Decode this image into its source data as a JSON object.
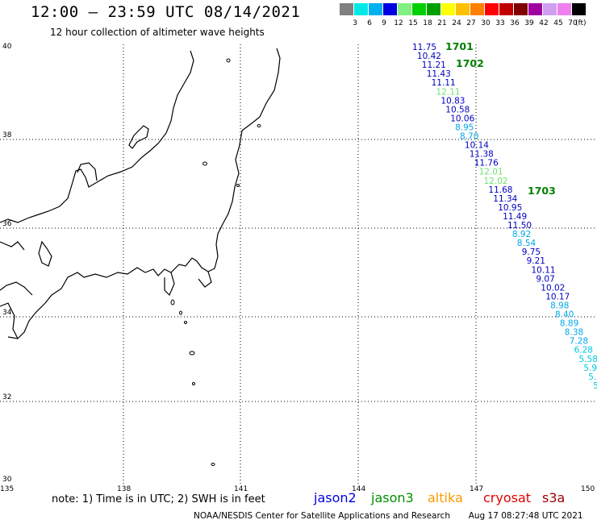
{
  "header": {
    "title": "12:00 – 23:59 UTC 08/14/2021",
    "subtitle": "12 hour collection of altimeter wave heights"
  },
  "color_scale": {
    "unit": "(ft)",
    "items": [
      {
        "label": "3",
        "color": "#808080"
      },
      {
        "label": "6",
        "color": "#00e8e8"
      },
      {
        "label": "9",
        "color": "#00b0f0"
      },
      {
        "label": "12",
        "color": "#0000e0"
      },
      {
        "label": "15",
        "color": "#80f080"
      },
      {
        "label": "18",
        "color": "#00d000"
      },
      {
        "label": "21",
        "color": "#00a000"
      },
      {
        "label": "24",
        "color": "#ffff00"
      },
      {
        "label": "27",
        "color": "#ffc000"
      },
      {
        "label": "30",
        "color": "#ff8000"
      },
      {
        "label": "33",
        "color": "#ff0000"
      },
      {
        "label": "36",
        "color": "#c00000"
      },
      {
        "label": "39",
        "color": "#800000"
      },
      {
        "label": "42",
        "color": "#a000a0"
      },
      {
        "label": "45",
        "color": "#d0a0f0"
      },
      {
        "label": "70",
        "color": "#f080f0"
      },
      {
        "label": "",
        "color": "#000000"
      }
    ]
  },
  "map": {
    "lat_labels": [
      "40",
      "38",
      "36",
      "34",
      "32",
      "30"
    ],
    "lon_labels": [
      "135",
      "138",
      "141",
      "144",
      "147",
      "150"
    ],
    "passes": [
      {
        "label": "1701",
        "color": "#008000"
      },
      {
        "label": "1702",
        "color": "#008000"
      },
      {
        "label": "1703",
        "color": "#008000"
      }
    ],
    "wave_heights": [
      {
        "value": "11.75",
        "color": "#0000c0"
      },
      {
        "value": "10.42",
        "color": "#0000c0"
      },
      {
        "value": "11.21",
        "color": "#0000c0"
      },
      {
        "value": "11.43",
        "color": "#0000c0"
      },
      {
        "value": "11.11",
        "color": "#0000c0"
      },
      {
        "value": "12.11",
        "color": "#70e070"
      },
      {
        "value": "10.83",
        "color": "#0000c0"
      },
      {
        "value": "10.58",
        "color": "#0000c0"
      },
      {
        "value": "10.06",
        "color": "#0000c0"
      },
      {
        "value": "8.95",
        "color": "#00a8e8"
      },
      {
        "value": "8.70",
        "color": "#00a8e8"
      },
      {
        "value": "10.14",
        "color": "#0000c0"
      },
      {
        "value": "11.38",
        "color": "#0000c0"
      },
      {
        "value": "11.76",
        "color": "#0000c0"
      },
      {
        "value": "12.01",
        "color": "#70e070"
      },
      {
        "value": "12.02",
        "color": "#70e070"
      },
      {
        "value": "11.68",
        "color": "#0000c0"
      },
      {
        "value": "11.34",
        "color": "#0000c0"
      },
      {
        "value": "10.95",
        "color": "#0000c0"
      },
      {
        "value": "11.49",
        "color": "#0000c0"
      },
      {
        "value": "11.50",
        "color": "#0000c0"
      },
      {
        "value": "8.92",
        "color": "#00a8e8"
      },
      {
        "value": "8.54",
        "color": "#00a8e8"
      },
      {
        "value": "9.75",
        "color": "#0000c0"
      },
      {
        "value": "9.21",
        "color": "#0000c0"
      },
      {
        "value": "10.11",
        "color": "#0000c0"
      },
      {
        "value": "9.07",
        "color": "#0000c0"
      },
      {
        "value": "10.02",
        "color": "#0000c0"
      },
      {
        "value": "10.17",
        "color": "#0000c0"
      },
      {
        "value": "8.98",
        "color": "#00a8e8"
      },
      {
        "value": "8.40",
        "color": "#00a8e8"
      },
      {
        "value": "8.89",
        "color": "#00a8e8"
      },
      {
        "value": "8.38",
        "color": "#00a8e8"
      },
      {
        "value": "7.28",
        "color": "#00a8e8"
      },
      {
        "value": "6.28",
        "color": "#00c8e0"
      },
      {
        "value": "5.58",
        "color": "#00c8e0"
      },
      {
        "value": "5.9",
        "color": "#00c8e0"
      },
      {
        "value": "5.",
        "color": "#00c8e0"
      },
      {
        "value": "5",
        "color": "#00c8e0"
      }
    ]
  },
  "note": "note: 1) Time is in UTC; 2) SWH is in feet",
  "legend": [
    {
      "label": "jason2",
      "color": "#0000e0"
    },
    {
      "label": "jason3",
      "color": "#009000"
    },
    {
      "label": "altika",
      "color": "#ff9900"
    },
    {
      "label": "cryosat",
      "color": "#e00000"
    },
    {
      "label": "s3a",
      "color": "#a00000"
    }
  ],
  "footer": {
    "credit": "NOAA/NESDIS Center for Satellite Applications and Research",
    "timestamp": "Aug 17 08:27:48 UTC 2021"
  }
}
